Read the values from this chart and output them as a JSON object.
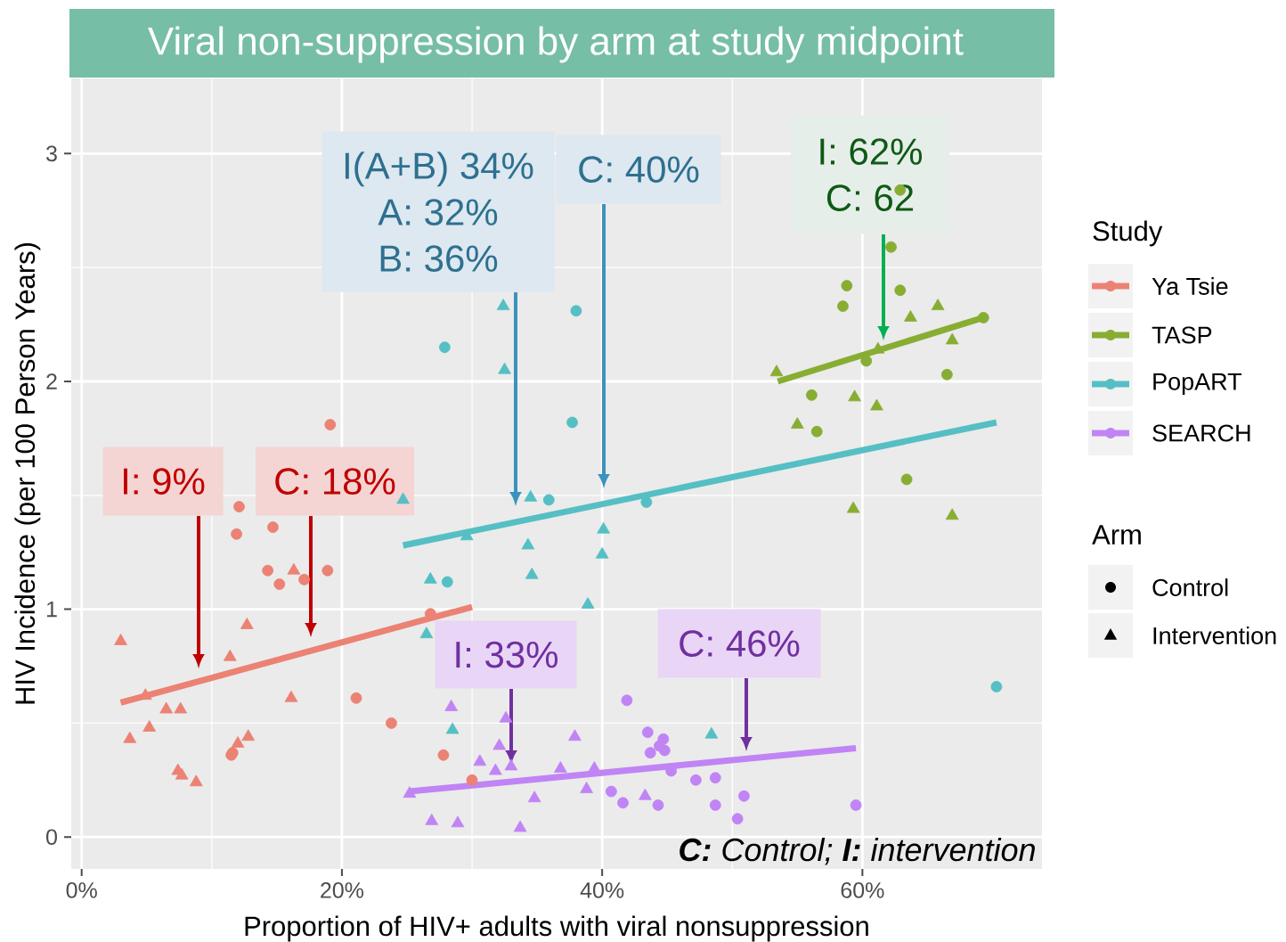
{
  "chart_data": {
    "type": "scatter",
    "title": "Viral non-suppression by arm at study midpoint",
    "xlabel": "Proportion of HIV+ adults with viral nonsuppression",
    "ylabel": "HIV Incidence (per 100 Person Years)",
    "legend_title": "Study",
    "legend": "right",
    "grid": true,
    "xlim": [
      -0.8,
      73.8
    ],
    "ylim": [
      -0.14,
      3.33
    ],
    "xticks": [
      {
        "value": 0,
        "label": "0%"
      },
      {
        "value": 20,
        "label": "20%"
      },
      {
        "value": 40,
        "label": "40%"
      },
      {
        "value": 60,
        "label": "60%"
      }
    ],
    "yticks": [
      0,
      1,
      2,
      3
    ],
    "series": [
      {
        "marker": "circle",
        "color": "#eb8274",
        "x": [
          19.1,
          12.1,
          11.9,
          14.7,
          14.3,
          15.2,
          17.1,
          18.9,
          26.8,
          21.1,
          23.8,
          27.8,
          11.5,
          11.6,
          30.0
        ],
        "values": [
          1.81,
          1.45,
          1.33,
          1.36,
          1.17,
          1.11,
          1.13,
          1.17,
          0.98,
          0.61,
          0.5,
          0.36,
          0.36,
          0.37,
          0.25
        ]
      },
      {
        "marker": "triangle",
        "color": "#eb8274",
        "x": [
          16.3,
          12.7,
          3.0,
          11.4,
          4.9,
          16.1,
          6.5,
          7.6,
          5.2,
          3.7,
          12.8,
          12.0,
          7.4,
          7.7,
          8.8
        ],
        "values": [
          1.17,
          0.93,
          0.86,
          0.79,
          0.62,
          0.61,
          0.56,
          0.56,
          0.48,
          0.43,
          0.44,
          0.41,
          0.29,
          0.27,
          0.24
        ]
      },
      {
        "marker": "circle",
        "color": "#88ad33",
        "x": [
          62.9,
          62.2,
          58.8,
          58.5,
          62.9,
          69.3,
          60.3,
          66.5,
          56.1,
          56.5,
          63.4
        ],
        "values": [
          2.84,
          2.59,
          2.42,
          2.33,
          2.4,
          2.28,
          2.09,
          2.03,
          1.94,
          1.78,
          1.57
        ]
      },
      {
        "marker": "triangle",
        "color": "#88ad33",
        "x": [
          53.4,
          63.7,
          65.8,
          66.9,
          61.2,
          59.4,
          61.1,
          55.0,
          59.3,
          66.9
        ],
        "values": [
          2.04,
          2.28,
          2.33,
          2.18,
          2.14,
          1.93,
          1.89,
          1.81,
          1.44,
          1.41
        ]
      },
      {
        "marker": "circle",
        "color": "#55bfc4",
        "x": [
          27.9,
          38.0,
          37.7,
          35.9,
          43.4,
          28.1,
          70.3
        ],
        "values": [
          2.15,
          2.31,
          1.82,
          1.48,
          1.47,
          1.12,
          0.66
        ]
      },
      {
        "marker": "triangle",
        "color": "#55bfc4",
        "x": [
          32.4,
          32.5,
          34.5,
          29.6,
          34.3,
          40.1,
          40.0,
          34.6,
          26.8,
          38.9,
          26.5,
          24.7,
          28.5,
          48.4
        ],
        "values": [
          2.33,
          2.05,
          1.49,
          1.32,
          1.28,
          1.35,
          1.24,
          1.15,
          1.13,
          1.02,
          0.89,
          1.48,
          0.47,
          0.45
        ]
      },
      {
        "marker": "circle",
        "color": "#c084f5",
        "x": [
          41.9,
          43.5,
          44.7,
          44.4,
          44.8,
          43.7,
          45.3,
          47.2,
          48.7,
          40.7,
          41.6,
          44.3,
          48.7,
          50.9,
          50.4,
          59.5
        ],
        "values": [
          0.6,
          0.46,
          0.43,
          0.4,
          0.38,
          0.37,
          0.29,
          0.25,
          0.26,
          0.2,
          0.15,
          0.14,
          0.14,
          0.18,
          0.08,
          0.14
        ]
      },
      {
        "marker": "triangle",
        "color": "#c084f5",
        "x": [
          28.4,
          32.6,
          32.1,
          37.9,
          30.6,
          31.8,
          33.0,
          36.8,
          39.4,
          38.8,
          34.8,
          43.3,
          26.9,
          28.9,
          33.7,
          25.2
        ],
        "values": [
          0.57,
          0.52,
          0.4,
          0.44,
          0.33,
          0.29,
          0.31,
          0.3,
          0.3,
          0.21,
          0.17,
          0.18,
          0.07,
          0.06,
          0.04,
          0.19
        ]
      },
      {
        "name": "Ya Tsie",
        "type": "line",
        "color": "#eb8274",
        "x": [
          3.0,
          30.0
        ],
        "values": [
          0.59,
          1.01
        ]
      },
      {
        "name": "TASP",
        "type": "line",
        "color": "#88ad33",
        "x": [
          53.5,
          69.3
        ],
        "values": [
          2.0,
          2.28
        ]
      },
      {
        "name": "PopART",
        "type": "line",
        "color": "#55bfc4",
        "x": [
          24.7,
          70.3
        ],
        "values": [
          1.28,
          1.82
        ]
      },
      {
        "name": "SEARCH",
        "type": "line",
        "color": "#c084f5",
        "x": [
          25.2,
          59.5
        ],
        "values": [
          0.2,
          0.39
        ]
      }
    ],
    "annotations": [
      "I: 9%",
      "C: 18%",
      "I(A+B) 34%",
      "A: 32%",
      "B: 36%",
      "C: 40%",
      "I: 62%",
      "C: 62",
      "I: 33%",
      "C: 46%",
      "**C:** Control; **I:** intervention",
      "Arm",
      "Control",
      "Intervention"
    ]
  }
}
